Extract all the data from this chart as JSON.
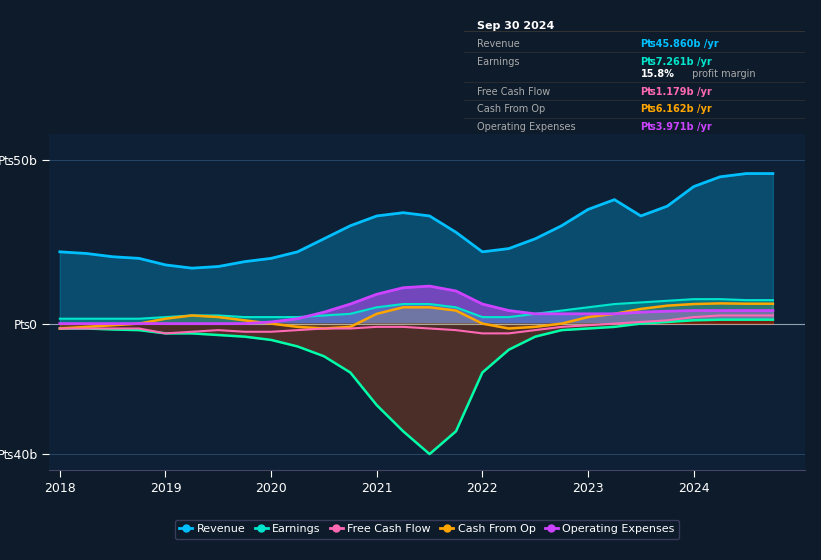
{
  "bg_color": "#0d1b2a",
  "plot_bg_color": "#0d2035",
  "grid_color": "#2a4a6a",
  "ylim": [
    -45,
    58
  ],
  "yticks": [
    -40,
    0,
    50
  ],
  "ytick_labels": [
    "-₧40b",
    "₧0",
    "₧50b"
  ],
  "years": [
    2018.0,
    2018.25,
    2018.5,
    2018.75,
    2019.0,
    2019.25,
    2019.5,
    2019.75,
    2020.0,
    2020.25,
    2020.5,
    2020.75,
    2021.0,
    2021.25,
    2021.5,
    2021.75,
    2022.0,
    2022.25,
    2022.5,
    2022.75,
    2023.0,
    2023.25,
    2023.5,
    2023.75,
    2024.0,
    2024.25,
    2024.5,
    2024.75
  ],
  "revenue": [
    22,
    21.5,
    20.5,
    20,
    18,
    17,
    17.5,
    19,
    20,
    22,
    26,
    30,
    33,
    34,
    33,
    28,
    22,
    23,
    26,
    30,
    35,
    38,
    33,
    36,
    42,
    45,
    46,
    46
  ],
  "earnings": [
    1.5,
    1.5,
    1.5,
    1.5,
    2,
    2.5,
    2.5,
    2,
    2,
    2,
    2.5,
    3,
    5,
    6,
    6,
    5,
    2,
    2,
    3,
    4,
    5,
    6,
    6.5,
    7,
    7.5,
    7.5,
    7.2,
    7.2
  ],
  "free_cash_flow": [
    -1.5,
    -1.5,
    -1.8,
    -2,
    -3,
    -3,
    -3.5,
    -4,
    -5,
    -7,
    -10,
    -15,
    -25,
    -33,
    -40,
    -33,
    -15,
    -8,
    -4,
    -2,
    -1.5,
    -1,
    0,
    0.5,
    1,
    1.2,
    1.2,
    1.2
  ],
  "cash_from_op": [
    -1.5,
    -1,
    -0.5,
    0,
    1.5,
    2.5,
    2,
    1,
    0,
    -1,
    -1.5,
    -1,
    3,
    5,
    5,
    4,
    0,
    -1.5,
    -1,
    0,
    2,
    3,
    4.5,
    5.5,
    6,
    6.2,
    6.1,
    6.1
  ],
  "operating_expenses": [
    0,
    0,
    0,
    0,
    0,
    0,
    0,
    0,
    0.5,
    1.5,
    3.5,
    6,
    9,
    11,
    11.5,
    10,
    6,
    4,
    3,
    3,
    3,
    3,
    3.5,
    3.8,
    4,
    4,
    4,
    4
  ],
  "revenue_color": "#00bfff",
  "earnings_color": "#00e5cc",
  "free_cash_flow_color": "#00e5cc",
  "free_cash_flow_line_color": "#00ffaa",
  "cash_from_op_color": "#ffa500",
  "operating_expenses_color": "#cc44ff",
  "earnings_line_color": "#ff69b4",
  "info_box": {
    "title": "Sep 30 2024",
    "rows": [
      {
        "label": "Revenue",
        "value": "₧45.860b /yr",
        "value_color": "#00bfff"
      },
      {
        "label": "Earnings",
        "value": "₧7.261b /yr",
        "value_color": "#00e5cc"
      },
      {
        "label": "",
        "value": "15.8% profit margin",
        "value_color": "#ffffff",
        "bold_part": "15.8%"
      },
      {
        "label": "Free Cash Flow",
        "value": "₧1.179b /yr",
        "value_color": "#ff69b4"
      },
      {
        "label": "Cash From Op",
        "value": "₧6.162b /yr",
        "value_color": "#ffa500"
      },
      {
        "label": "Operating Expenses",
        "value": "₧3.971b /yr",
        "value_color": "#cc44ff"
      }
    ]
  },
  "legend_items": [
    {
      "label": "Revenue",
      "color": "#00bfff"
    },
    {
      "label": "Earnings",
      "color": "#00e5cc"
    },
    {
      "label": "Free Cash Flow",
      "color": "#ff69b4"
    },
    {
      "label": "Cash From Op",
      "color": "#ffa500"
    },
    {
      "label": "Operating Expenses",
      "color": "#cc44ff"
    }
  ]
}
